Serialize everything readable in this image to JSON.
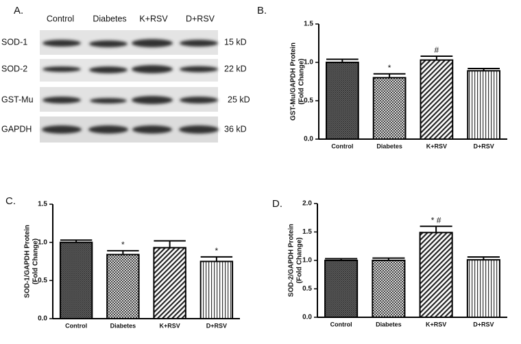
{
  "blot": {
    "label": "A.",
    "columns": [
      "Control",
      "Diabetes",
      "K+RSV",
      "D+RSV"
    ],
    "rows": [
      {
        "protein": "SOD-1",
        "size": "15 kD"
      },
      {
        "protein": "SOD-2",
        "size": "22 kD"
      },
      {
        "protein": "GST-Mu",
        "size": "25 kD"
      },
      {
        "protein": "GAPDH",
        "size": "36 kD"
      }
    ]
  },
  "chart_data": [
    {
      "type": "bar",
      "label": "B.",
      "ylabel": [
        "GST-Mu/GAPDH Protein",
        "(Fold Change)"
      ],
      "categories": [
        "Control",
        "Diabetes",
        "K+RSV",
        "D+RSV"
      ],
      "values": [
        1.0,
        0.8,
        1.03,
        0.89
      ],
      "errors": [
        0.04,
        0.05,
        0.05,
        0.03
      ],
      "annotations": [
        null,
        "*",
        "#",
        null
      ],
      "patterns": [
        "crosshatch",
        "checker",
        "diagonal",
        "vertical"
      ],
      "ylim": [
        0,
        1.5
      ],
      "yticks": [
        {
          "value": 0,
          "label": "0.0"
        },
        {
          "value": 0.5,
          "label": "0.5"
        },
        {
          "value": 1,
          "label": "1.0"
        },
        {
          "value": 1.5,
          "label": "1.5"
        }
      ]
    },
    {
      "type": "bar",
      "label": "C.",
      "ylabel": [
        "SOD-1/GAPDH Protein",
        "(Fold Change)"
      ],
      "categories": [
        "Control",
        "Diabetes",
        "K+RSV",
        "D+RSV"
      ],
      "values": [
        1.0,
        0.84,
        0.93,
        0.75
      ],
      "errors": [
        0.03,
        0.05,
        0.09,
        0.06
      ],
      "annotations": [
        null,
        "*",
        null,
        "*"
      ],
      "patterns": [
        "crosshatch",
        "checker",
        "diagonal",
        "vertical"
      ],
      "ylim": [
        0,
        1.5
      ],
      "yticks": [
        {
          "value": 0,
          "label": "0.0"
        },
        {
          "value": 0.5,
          "label": "0.5"
        },
        {
          "value": 1,
          "label": "1.0"
        },
        {
          "value": 1.5,
          "label": "1.5"
        }
      ]
    },
    {
      "type": "bar",
      "label": "D.",
      "ylabel": [
        "SOD-2/GAPDH Protein",
        "(Fold Change)"
      ],
      "categories": [
        "Control",
        "Diabetes",
        "K+RSV",
        "D+RSV"
      ],
      "values": [
        1.0,
        1.0,
        1.49,
        1.01
      ],
      "errors": [
        0.03,
        0.04,
        0.11,
        0.05
      ],
      "annotations": [
        null,
        null,
        "* #",
        null
      ],
      "patterns": [
        "crosshatch",
        "checker",
        "diagonal",
        "vertical"
      ],
      "ylim": [
        0,
        2
      ],
      "yticks": [
        {
          "value": 0,
          "label": "0.0"
        },
        {
          "value": 0.5,
          "label": "0.5"
        },
        {
          "value": 1,
          "label": "1.0"
        },
        {
          "value": 1.5,
          "label": "1.5"
        },
        {
          "value": 2,
          "label": "2.0"
        }
      ]
    }
  ]
}
